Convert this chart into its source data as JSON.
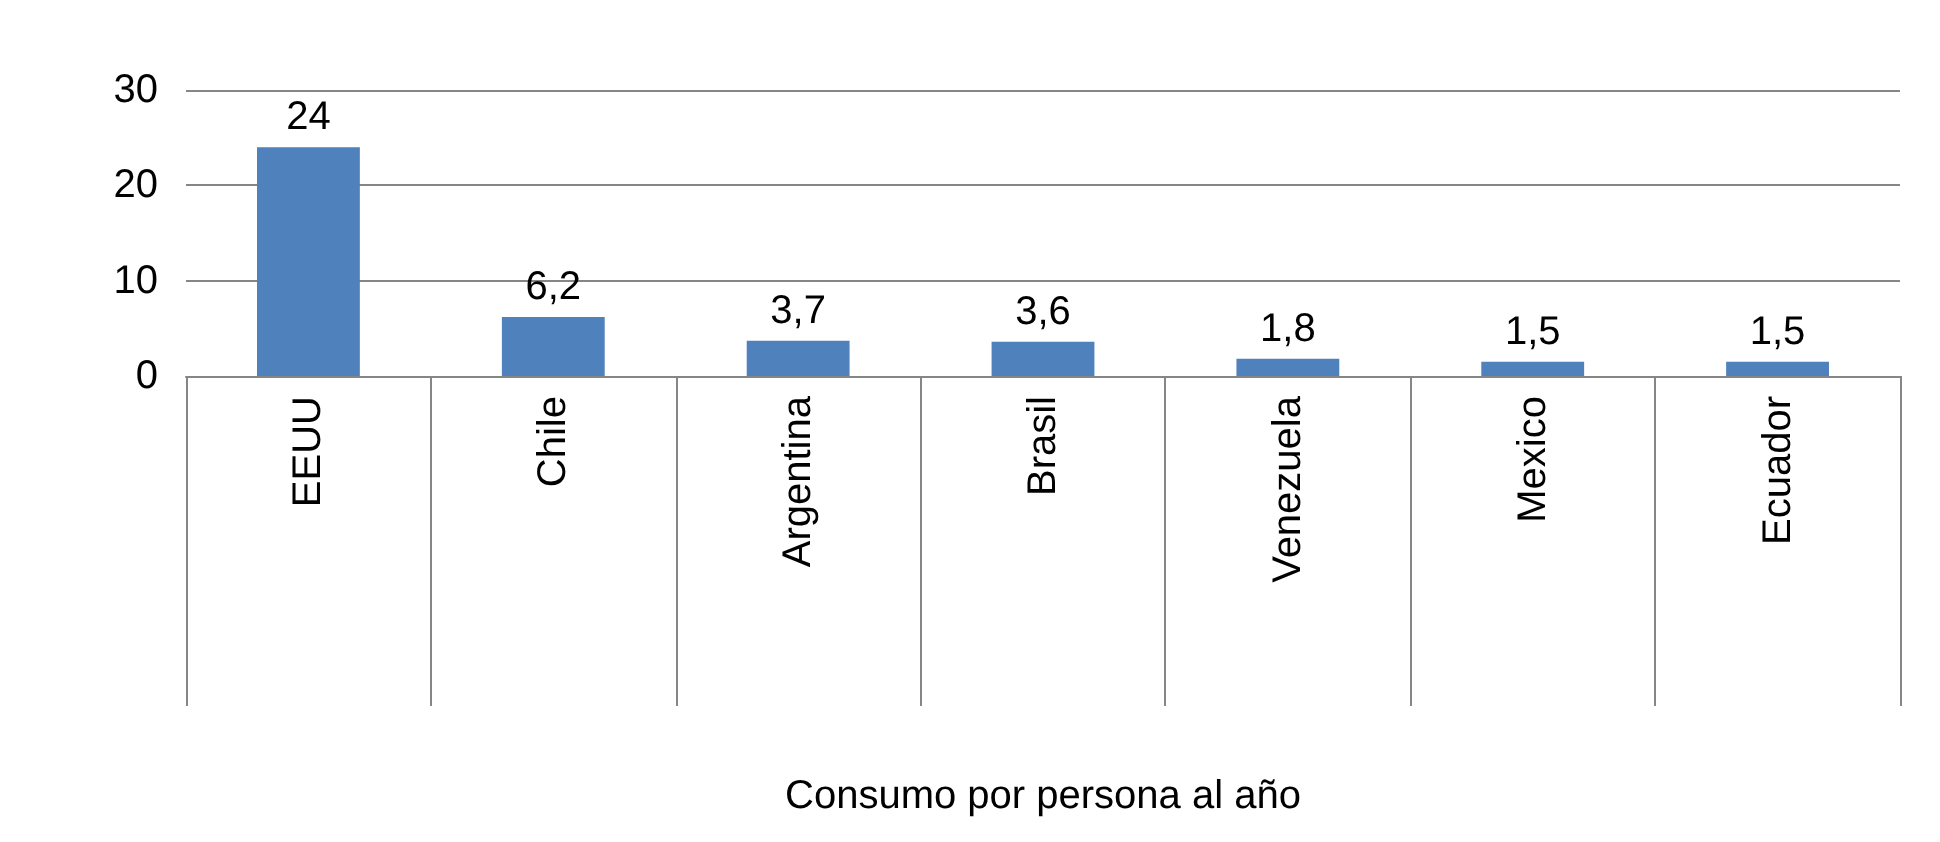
{
  "chart_data": {
    "type": "bar",
    "xlabel": "Consumo por persona al año",
    "categories": [
      "EEUU",
      "Chile",
      "Argentina",
      "Brasil",
      "Venezuela",
      "Mexico",
      "Ecuador"
    ],
    "values": [
      24,
      6.2,
      3.7,
      3.6,
      1.8,
      1.5,
      1.5
    ],
    "value_labels": [
      "24",
      "6,2",
      "3,7",
      "3,6",
      "1,8",
      "1,5",
      "1,5"
    ],
    "color": "#4f81bd",
    "ylim": [
      0,
      30
    ],
    "yticks": [
      0,
      10,
      20,
      30
    ],
    "grid": "y"
  }
}
